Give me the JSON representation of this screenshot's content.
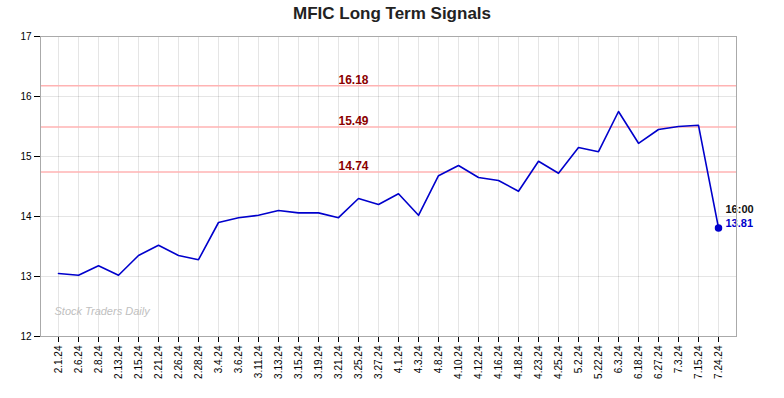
{
  "chart_data": {
    "type": "line",
    "title": "MFIC Long Term Signals",
    "categories": [
      "2.1.24",
      "2.6.24",
      "2.8.24",
      "2.13.24",
      "2.15.24",
      "2.21.24",
      "2.26.24",
      "2.28.24",
      "3.4.24",
      "3.6.24",
      "3.11.24",
      "3.13.24",
      "3.15.24",
      "3.19.24",
      "3.21.24",
      "3.25.24",
      "3.27.24",
      "4.1.24",
      "4.3.24",
      "4.8.24",
      "4.10.24",
      "4.12.24",
      "4.16.24",
      "4.18.24",
      "4.23.24",
      "4.25.24",
      "5.2.24",
      "5.22.24",
      "6.3.24",
      "6.18.24",
      "6.27.24",
      "7.3.24",
      "7.15.24",
      "7.24.24"
    ],
    "values": [
      13.05,
      13.02,
      13.18,
      13.02,
      13.35,
      13.52,
      13.35,
      13.28,
      13.9,
      13.98,
      14.02,
      14.1,
      14.06,
      14.06,
      13.98,
      14.3,
      14.2,
      14.38,
      14.02,
      14.68,
      14.85,
      14.65,
      14.6,
      14.42,
      14.92,
      14.72,
      15.15,
      15.08,
      15.75,
      15.22,
      15.45,
      15.5,
      15.52,
      13.81
    ],
    "color": "#0000cc",
    "ylim": [
      12,
      17
    ],
    "yticks": [
      12,
      13,
      14,
      15,
      16,
      17
    ],
    "grid": true,
    "hlines": [
      {
        "y": 16.18,
        "label": "16.18",
        "color": "#ffb3b3",
        "label_color": "#8b0000",
        "label_x": "3.21.24"
      },
      {
        "y": 15.49,
        "label": "15.49",
        "color": "#ffb3b3",
        "label_color": "#8b0000",
        "label_x": "3.21.24"
      },
      {
        "y": 14.74,
        "label": "14.74",
        "color": "#ffb3b3",
        "label_color": "#8b0000",
        "label_x": "3.21.24"
      }
    ],
    "highlight_point": {
      "x": "7.24.24",
      "y": 13.81,
      "color": "#0000cc"
    },
    "annotations": [
      {
        "x": "7.24.24",
        "y": 13.81,
        "text": "16:00",
        "color": "#111111"
      },
      {
        "x": "7.24.24",
        "y": 13.81,
        "text": "13.81",
        "color": "#0000cc"
      }
    ],
    "watermark": "Stock Traders Daily"
  }
}
